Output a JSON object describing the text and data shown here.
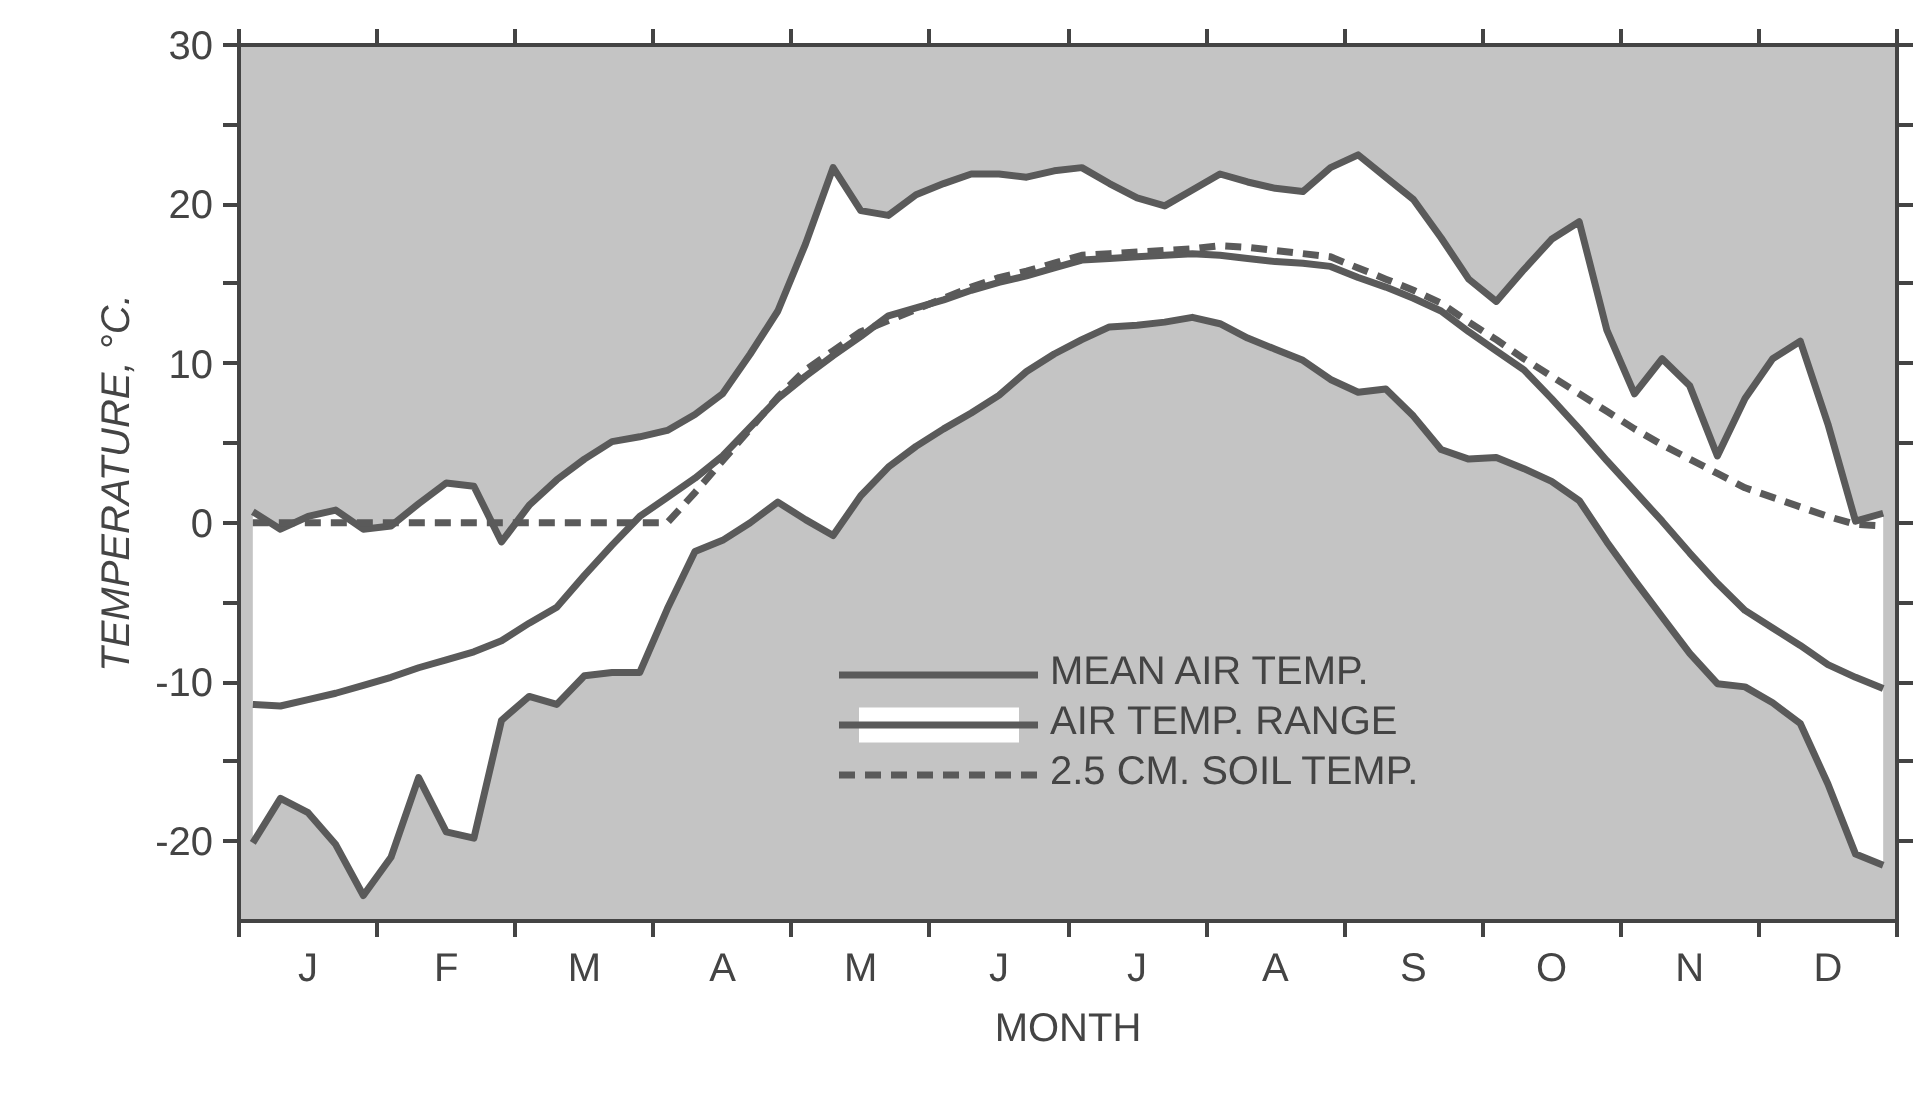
{
  "chart_data": {
    "type": "line",
    "xlabel": "MONTH",
    "ylabel": "TEMPERATURE, °C.",
    "categories": [
      null,
      null,
      "J",
      null,
      null,
      null,
      null,
      "F",
      null,
      null,
      null,
      null,
      "M",
      null,
      null,
      null,
      null,
      "A",
      null,
      null,
      null,
      null,
      "M",
      null,
      null,
      null,
      null,
      "J",
      null,
      null,
      null,
      null,
      "J",
      null,
      null,
      null,
      null,
      "A",
      null,
      null,
      null,
      null,
      "S",
      null,
      null,
      null,
      null,
      "O",
      null,
      null,
      null,
      null,
      "N",
      null,
      null,
      null,
      null,
      "D",
      null,
      null
    ],
    "ylim": [
      -25,
      30
    ],
    "yticks": [
      -20,
      {
        "value": -15,
        "label": null
      },
      -10,
      {
        "value": -5,
        "label": null
      },
      0,
      {
        "value": 5,
        "label": null
      },
      10,
      {
        "value": 15,
        "label": null
      },
      20,
      {
        "value": 25,
        "label": null
      },
      30
    ],
    "grid": false,
    "legend": "bottom right",
    "line_style": "solid",
    "marker": "none",
    "series": [
      {
        "name": "AIR TEMP. RANGE",
        "color": "#5a5a5a",
        "values": [
          0.7,
          -0.4,
          0.4,
          0.8,
          -0.4,
          -0.2,
          1.2,
          2.5,
          2.3,
          -1.2,
          1.1,
          2.7,
          4.0,
          5.1,
          5.4,
          5.8,
          6.8,
          8.1,
          10.6,
          13.3,
          17.5,
          22.3,
          19.6,
          19.3,
          20.6,
          21.3,
          21.9,
          21.9,
          21.7,
          22.1,
          22.3,
          21.3,
          20.4,
          19.9,
          20.9,
          21.9,
          21.4,
          21.0,
          20.8,
          22.3,
          23.1,
          21.7,
          20.3,
          17.9,
          15.3,
          13.9,
          15.9,
          17.8,
          18.9,
          12.1,
          8.1,
          10.3,
          8.6,
          4.2,
          7.8,
          10.3,
          11.4,
          6.2,
          0.1,
          0.6
        ],
        "upper": [
          0.7,
          -0.4,
          0.4,
          0.8,
          -0.4,
          -0.2,
          1.2,
          2.5,
          2.3,
          -1.2,
          1.1,
          2.7,
          4.0,
          5.1,
          5.4,
          5.8,
          6.8,
          8.1,
          10.6,
          13.3,
          17.5,
          22.3,
          19.6,
          19.3,
          20.6,
          21.3,
          21.9,
          21.9,
          21.7,
          22.1,
          22.3,
          21.3,
          20.4,
          19.9,
          20.9,
          21.9,
          21.4,
          21.0,
          20.8,
          22.3,
          23.1,
          21.7,
          20.3,
          17.9,
          15.3,
          13.9,
          15.9,
          17.8,
          18.9,
          12.1,
          8.1,
          10.3,
          8.6,
          4.2,
          7.8,
          10.3,
          11.4,
          6.2,
          0.1,
          0.6
        ],
        "lower": [
          -20.1,
          -17.3,
          -18.2,
          -20.2,
          -23.4,
          -21.0,
          -16.0,
          -19.4,
          -19.8,
          -12.4,
          -10.9,
          -11.4,
          -9.6,
          -9.4,
          -9.4,
          -5.4,
          -1.8,
          -1.1,
          0.0,
          1.3,
          0.2,
          -0.8,
          1.7,
          3.5,
          4.8,
          5.9,
          6.9,
          8.0,
          9.5,
          10.6,
          11.5,
          12.3,
          12.4,
          12.6,
          12.9,
          12.5,
          11.6,
          10.9,
          10.2,
          9.0,
          8.2,
          8.4,
          6.7,
          4.6,
          4.0,
          4.1,
          3.4,
          2.6,
          1.4,
          -1.2,
          -3.6,
          -5.9,
          -8.2,
          -10.1,
          -10.3,
          -11.3,
          -12.6,
          -16.4,
          -20.8,
          -21.5
        ]
      },
      {
        "color": "#5a5a5a",
        "values": [
          -20.1,
          -17.3,
          -18.2,
          -20.2,
          -23.4,
          -21.0,
          -16.0,
          -19.4,
          -19.8,
          -12.4,
          -10.9,
          -11.4,
          -9.6,
          -9.4,
          -9.4,
          -5.4,
          -1.8,
          -1.1,
          0.0,
          1.3,
          0.2,
          -0.8,
          1.7,
          3.5,
          4.8,
          5.9,
          6.9,
          8.0,
          9.5,
          10.6,
          11.5,
          12.3,
          12.4,
          12.6,
          12.9,
          12.5,
          11.6,
          10.9,
          10.2,
          9.0,
          8.2,
          8.4,
          6.7,
          4.6,
          4.0,
          4.1,
          3.4,
          2.6,
          1.4,
          -1.2,
          -3.6,
          -5.9,
          -8.2,
          -10.1,
          -10.3,
          -11.3,
          -12.6,
          -16.4,
          -20.8,
          -21.5
        ]
      },
      {
        "name": "MEAN AIR TEMP.",
        "color": "#5a5a5a",
        "values": [
          -11.4,
          -11.5,
          -11.1,
          -10.7,
          -10.2,
          -9.7,
          -9.1,
          -8.6,
          -8.1,
          -7.4,
          -6.3,
          -5.3,
          -3.3,
          -1.4,
          0.4,
          1.6,
          2.8,
          4.2,
          6.0,
          7.8,
          9.2,
          10.5,
          11.7,
          13.0,
          13.5,
          14.0,
          14.6,
          15.1,
          15.5,
          16.0,
          16.5,
          16.6,
          16.7,
          16.8,
          16.9,
          16.8,
          16.6,
          16.4,
          16.3,
          16.1,
          15.4,
          14.8,
          14.1,
          13.3,
          12.0,
          10.8,
          9.6,
          7.8,
          5.9,
          3.9,
          2.0,
          0.1,
          -1.9,
          -3.8,
          -5.5,
          -6.6,
          -7.7,
          -8.9,
          -9.7,
          -10.4
        ]
      },
      {
        "name": "2.5 CM. SOIL TEMP.",
        "color": "#5a5a5a",
        "line_style": "dashed",
        "values": [
          0.0,
          0.0,
          0.0,
          0.0,
          0.0,
          0.0,
          0.0,
          0.0,
          0.0,
          0.0,
          0.0,
          0.0,
          0.0,
          0.0,
          0.0,
          0.0,
          1.9,
          3.9,
          5.9,
          7.9,
          9.6,
          10.8,
          12.0,
          12.7,
          13.4,
          14.1,
          14.8,
          15.4,
          15.8,
          16.3,
          16.8,
          16.9,
          17.0,
          17.1,
          17.2,
          17.4,
          17.3,
          17.1,
          16.9,
          16.7,
          16.0,
          15.3,
          14.6,
          13.8,
          12.6,
          11.5,
          10.3,
          9.2,
          8.1,
          7.0,
          5.9,
          4.9,
          4.0,
          3.1,
          2.2,
          1.6,
          1.0,
          0.4,
          -0.1,
          -0.2
        ]
      }
    ]
  }
}
